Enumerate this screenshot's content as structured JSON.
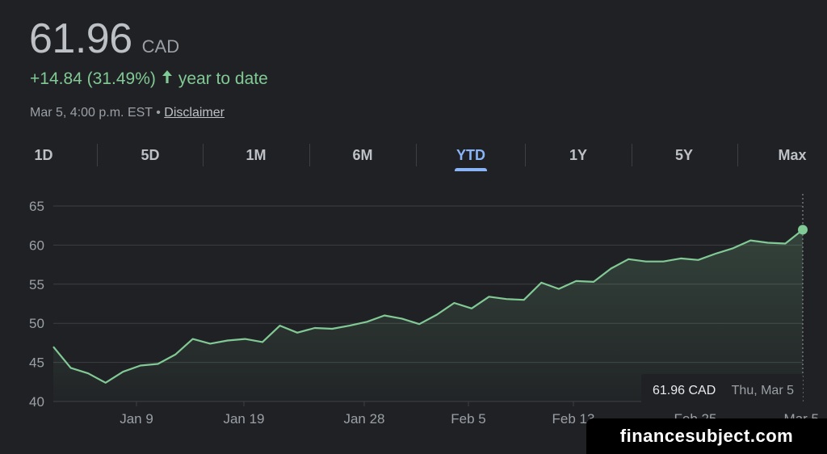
{
  "quote": {
    "price": "61.96",
    "currency": "CAD",
    "change": "+14.84 (31.49%)",
    "period_label": "year to date",
    "timestamp": "Mar 5, 4:00 p.m. EST",
    "bullet": "•",
    "disclaimer_label": "Disclaimer"
  },
  "tabs": [
    {
      "label": "1D",
      "active": false
    },
    {
      "label": "5D",
      "active": false
    },
    {
      "label": "1M",
      "active": false
    },
    {
      "label": "6M",
      "active": false
    },
    {
      "label": "YTD",
      "active": true
    },
    {
      "label": "1Y",
      "active": false
    },
    {
      "label": "5Y",
      "active": false
    },
    {
      "label": "Max",
      "active": false
    }
  ],
  "colors": {
    "line": "#81c995",
    "active_tab": "#8ab4f8",
    "grid": "#3c4043",
    "axis_text": "#9aa0a6"
  },
  "tooltip": {
    "price": "61.96 CAD",
    "date": "Thu, Mar 5"
  },
  "watermark": "financesubject.com",
  "chart_data": {
    "type": "area",
    "x_ticks": [
      "Jan 9",
      "Jan 19",
      "Jan 28",
      "Feb 5",
      "Feb 13",
      "Feb 25",
      "Mar 5"
    ],
    "y_ticks": [
      "40",
      "45",
      "50",
      "55",
      "60",
      "65"
    ],
    "ylim": [
      40,
      65
    ],
    "grid": true,
    "series": [
      {
        "values": [
          47.0,
          44.3,
          43.6,
          42.4,
          43.8,
          44.6,
          44.8,
          46.0,
          48.0,
          47.4,
          47.8,
          48.0,
          47.6,
          49.7,
          48.8,
          49.4,
          49.3,
          49.7,
          50.2,
          51.0,
          50.6,
          49.9,
          51.1,
          52.6,
          51.9,
          53.4,
          53.1,
          53.0,
          55.2,
          54.4,
          55.4,
          55.3,
          57.0,
          58.2,
          57.9,
          57.9,
          58.3,
          58.1,
          58.9,
          59.6,
          60.6,
          60.3,
          60.2,
          61.96
        ]
      }
    ]
  }
}
